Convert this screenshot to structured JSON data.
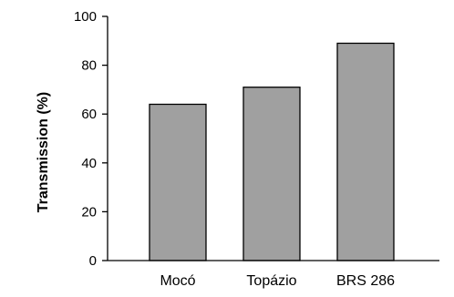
{
  "chart_data": {
    "type": "bar",
    "categories": [
      "Mocó",
      "Topázio",
      "BRS 286"
    ],
    "values": [
      64,
      71,
      89
    ],
    "title": "",
    "xlabel": "",
    "ylabel": "Transmission (%)",
    "ylim": [
      0,
      100
    ],
    "yticks": [
      0,
      20,
      40,
      60,
      80,
      100
    ],
    "grid": false,
    "legend": "none",
    "bar_color": "#a0a0a0",
    "edge_color": "#000000"
  }
}
